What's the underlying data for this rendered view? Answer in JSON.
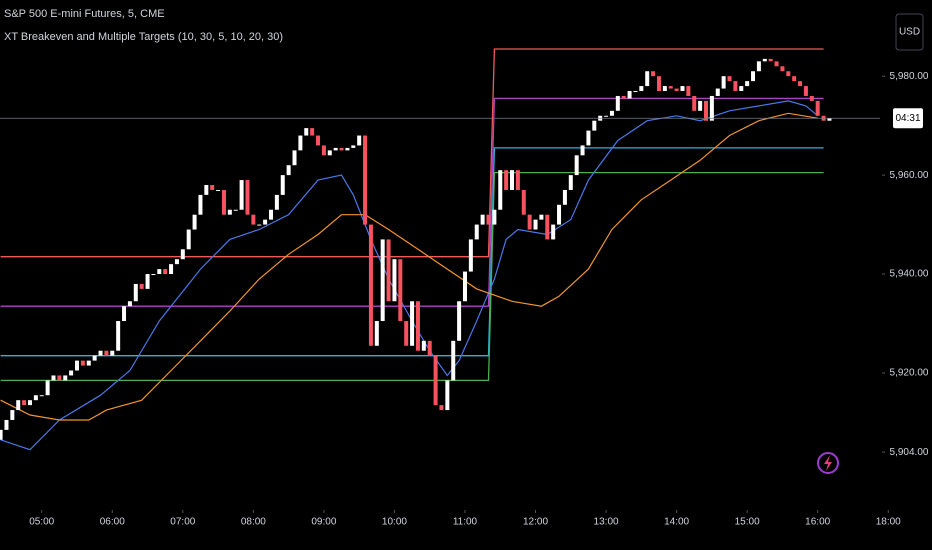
{
  "chart_data": {
    "type": "candlestick",
    "title": "S&P 500 E-mini Futures, 5, CME",
    "indicator": "XT Breakeven and Multiple Targets (10, 30, 5, 10, 20, 30)",
    "currency": "USD",
    "countdown": "04:31",
    "up_color": "#ffffff",
    "down_color": "#f7525f",
    "open": [
      5906.5,
      5908.5,
      5910.5,
      5912.5,
      5914.5,
      5913.5,
      5914.5,
      5915.5,
      5915.5,
      5918.5,
      5919.5,
      5918.5,
      5919.5,
      5920.5,
      5922.5,
      5921.5,
      5922.5,
      5923.5,
      5924.5,
      5923.5,
      5924.5,
      5930.5,
      5933.5,
      5934.5,
      5938,
      5937,
      5940,
      5940,
      5941,
      5940,
      5942,
      5943,
      5945,
      5949,
      5952,
      5956,
      5958,
      5957,
      5957,
      5952,
      5953,
      5953,
      5959,
      5952,
      5950,
      5950,
      5951,
      5953,
      5956,
      5960,
      5962,
      5965,
      5968,
      5969.5,
      5968,
      5966,
      5964,
      5965,
      5965.5,
      5965,
      5965.5,
      5966,
      5968,
      5950,
      5925.5,
      5930.5,
      5947,
      5934.5,
      5943,
      5930.5,
      5925.5,
      5934.5,
      5924.5,
      5926.5,
      5923.5,
      5913.5,
      5912.5,
      5918.5,
      5926.5,
      5934.5,
      5940.5,
      5947,
      5950,
      5952,
      5950,
      5953,
      5961,
      5957,
      5961,
      5957,
      5952,
      5949,
      5951,
      5952,
      5947,
      5950,
      5954,
      5957,
      5960,
      5964,
      5966,
      5969,
      5971,
      5972,
      5972,
      5973,
      5976,
      5975.5,
      5977,
      5977,
      5978,
      5981,
      5980,
      5977,
      5978,
      5977.5,
      5977,
      5978,
      5976,
      5973,
      5975,
      5971,
      5976,
      5977.5,
      5980,
      5979,
      5977,
      5978,
      5979,
      5981,
      5983,
      5983.5,
      5983,
      5982,
      5981,
      5980,
      5979,
      5978,
      5976,
      5975,
      5972,
      5971
    ],
    "close": [
      5908.5,
      5910.5,
      5912.5,
      5914.5,
      5913.5,
      5914.5,
      5915.5,
      5915.5,
      5918.5,
      5919.5,
      5918.5,
      5919.5,
      5920.5,
      5922.5,
      5921.5,
      5922.5,
      5923.5,
      5924.5,
      5923.5,
      5924.5,
      5930.5,
      5933.5,
      5934.5,
      5938,
      5937,
      5940,
      5940,
      5941,
      5940,
      5942,
      5943,
      5945,
      5949,
      5952,
      5956,
      5958,
      5957,
      5957,
      5952,
      5953,
      5953,
      5959,
      5952,
      5950,
      5950,
      5951,
      5953,
      5956,
      5960,
      5962,
      5965,
      5968,
      5969.5,
      5968,
      5966,
      5964,
      5965,
      5965.5,
      5965,
      5965.5,
      5966,
      5968,
      5950,
      5925.5,
      5930.5,
      5947,
      5934.5,
      5943,
      5930.5,
      5925.5,
      5934.5,
      5924.5,
      5926.5,
      5923.5,
      5913.5,
      5912.5,
      5918.5,
      5926.5,
      5934.5,
      5940.5,
      5947,
      5950,
      5952,
      5950,
      5953,
      5961,
      5957,
      5961,
      5957,
      5952,
      5949,
      5951,
      5952,
      5947,
      5950,
      5954,
      5957,
      5960,
      5964,
      5966,
      5969,
      5971,
      5972,
      5972,
      5973,
      5976,
      5975.5,
      5977,
      5977,
      5978,
      5981,
      5980,
      5977,
      5978,
      5977.5,
      5977,
      5978,
      5976,
      5973,
      5975,
      5971,
      5976,
      5977.5,
      5980,
      5979,
      5977,
      5978,
      5979,
      5981,
      5983,
      5983.5,
      5983,
      5982,
      5981,
      5980,
      5979,
      5978,
      5976,
      5975,
      5972,
      5971,
      5971.5
    ],
    "lines": [
      {
        "color": "#4a78e8",
        "x": [
          0,
          5,
          10,
          17,
          22,
          27,
          34,
          39,
          44,
          49,
          54,
          58,
          60,
          63,
          66,
          70,
          73,
          76,
          78,
          81,
          84,
          86,
          88,
          93,
          97,
          100,
          105,
          110,
          115,
          119,
          124,
          129,
          134,
          137,
          139
        ],
        "values": [
          5906.5,
          5904.5,
          5910.5,
          5915.5,
          5920.5,
          5930.5,
          5941,
          5947,
          5949,
          5952,
          5959,
          5960,
          5956,
          5947,
          5939,
          5930.5,
          5924.5,
          5919.5,
          5922.5,
          5930.5,
          5939,
          5947,
          5949,
          5948,
          5951,
          5959,
          5967,
          5971,
          5972,
          5971,
          5973,
          5974,
          5975,
          5974,
          5972
        ]
      },
      {
        "color": "#f0952c",
        "x": [
          0,
          5,
          10,
          15,
          18,
          24,
          29,
          34,
          39,
          44,
          49,
          54,
          58,
          62,
          66,
          71,
          76,
          81,
          87,
          92,
          95,
          100,
          104,
          109,
          114,
          119,
          124,
          129,
          134,
          139
        ],
        "values": [
          5914.5,
          5911.5,
          5910.5,
          5910.5,
          5912.5,
          5914.5,
          5920.5,
          5926.5,
          5932.5,
          5939,
          5944,
          5948,
          5952,
          5952,
          5949,
          5945,
          5941,
          5937,
          5934.5,
          5933.5,
          5935.5,
          5941,
          5949,
          5955,
          5959,
          5963,
          5968,
          5971,
          5972.5,
          5971.5
        ]
      }
    ],
    "levels": [
      {
        "color": "#f05a5a",
        "x": [
          0,
          83,
          84,
          140
        ],
        "values": [
          5943.5,
          5943.5,
          5985.5,
          5985.5
        ]
      },
      {
        "color": "#b042c8",
        "x": [
          0,
          83,
          84,
          140
        ],
        "values": [
          5933.5,
          5933.5,
          5975.5,
          5975.5
        ]
      },
      {
        "color": "#29b6d8",
        "x": [
          0,
          83,
          84,
          140
        ],
        "values": [
          5923.5,
          5923.5,
          5965.5,
          5965.5
        ]
      },
      {
        "color": "#4caf50",
        "x": [
          0,
          83,
          84,
          140
        ],
        "values": [
          5918.5,
          5918.5,
          5960.5,
          5960.5
        ]
      }
    ],
    "ylim": [
      5892.3,
      5995.4
    ],
    "yticks": [
      {
        "value": 5904,
        "label": "5,904.00"
      },
      {
        "value": 5920,
        "label": "5,920.00"
      },
      {
        "value": 5940,
        "label": "5,940.00"
      },
      {
        "value": 5960,
        "label": "5,960.00"
      },
      {
        "value": 5980,
        "label": "5,980.00"
      }
    ],
    "xlim": [
      -0.1,
      149.6
    ],
    "xticks": [
      {
        "value": 7,
        "label": "05:00"
      },
      {
        "value": 19,
        "label": "06:00"
      },
      {
        "value": 31,
        "label": "07:00"
      },
      {
        "value": 43,
        "label": "08:00"
      },
      {
        "value": 55,
        "label": "09:00"
      },
      {
        "value": 67,
        "label": "10:00"
      },
      {
        "value": 79,
        "label": "11:00"
      },
      {
        "value": 91,
        "label": "12:00"
      },
      {
        "value": 103,
        "label": "13:00"
      },
      {
        "value": 115,
        "label": "14:00"
      },
      {
        "value": 127,
        "label": "15:00"
      },
      {
        "value": 139,
        "label": "16:00"
      },
      {
        "value": 151,
        "label": "18:00"
      }
    ]
  }
}
